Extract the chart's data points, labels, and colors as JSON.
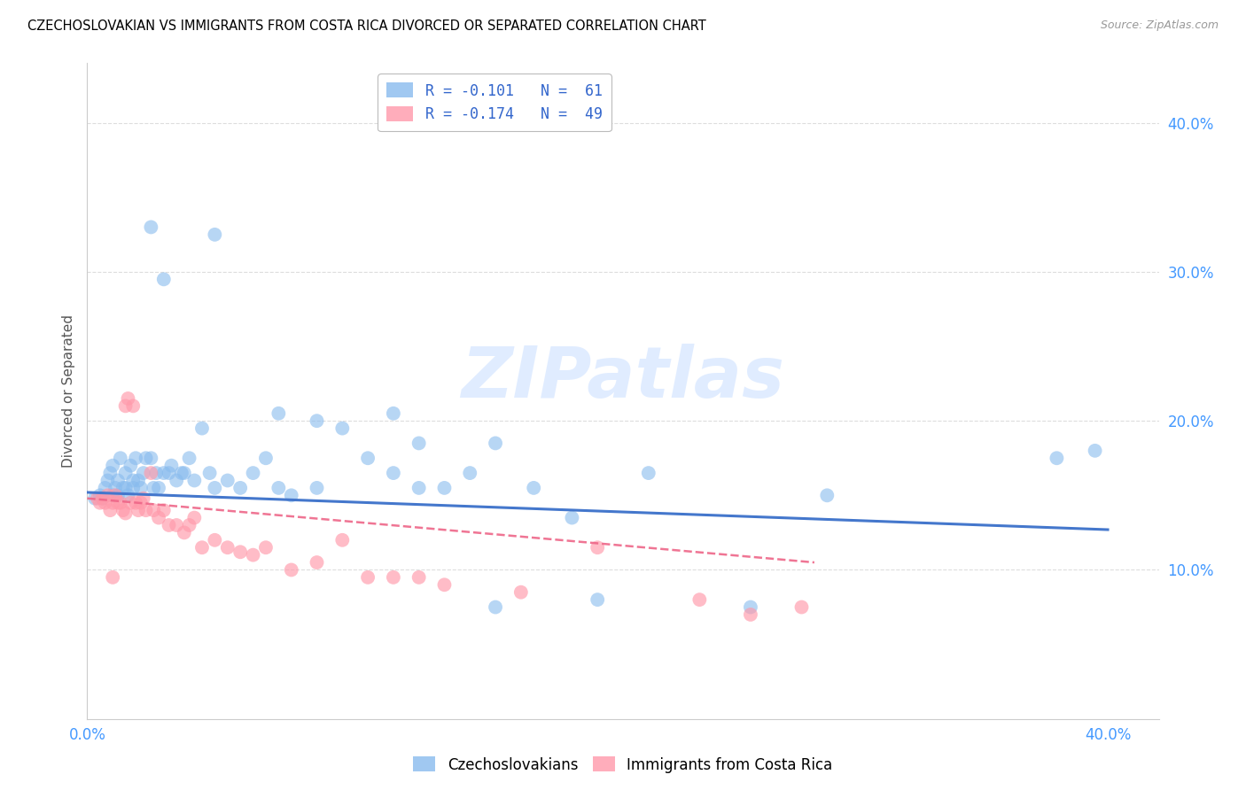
{
  "title": "CZECHOSLOVAKIAN VS IMMIGRANTS FROM COSTA RICA DIVORCED OR SEPARATED CORRELATION CHART",
  "source": "Source: ZipAtlas.com",
  "ylabel": "Divorced or Separated",
  "xlim": [
    0.0,
    0.42
  ],
  "ylim": [
    0.0,
    0.44
  ],
  "ytick_positions": [
    0.0,
    0.1,
    0.2,
    0.3,
    0.4
  ],
  "ytick_labels": [
    "",
    "10.0%",
    "20.0%",
    "30.0%",
    "40.0%"
  ],
  "xtick_positions": [
    0.0,
    0.1,
    0.2,
    0.3,
    0.4
  ],
  "xtick_labels": [
    "0.0%",
    "",
    "",
    "",
    "40.0%"
  ],
  "color_blue": "#88BBEE",
  "color_pink": "#FF99AA",
  "line_color_blue": "#4477CC",
  "line_color_pink": "#EE6688",
  "watermark": "ZIPatlas",
  "blue_line_x": [
    0.0,
    0.4
  ],
  "blue_line_y": [
    0.152,
    0.127
  ],
  "pink_line_x": [
    0.0,
    0.285
  ],
  "pink_line_y": [
    0.148,
    0.105
  ],
  "blue_scatter_x": [
    0.003,
    0.005,
    0.006,
    0.007,
    0.008,
    0.009,
    0.01,
    0.01,
    0.011,
    0.012,
    0.012,
    0.013,
    0.014,
    0.015,
    0.015,
    0.016,
    0.017,
    0.018,
    0.018,
    0.019,
    0.02,
    0.021,
    0.022,
    0.023,
    0.025,
    0.026,
    0.027,
    0.028,
    0.03,
    0.032,
    0.033,
    0.035,
    0.037,
    0.038,
    0.04,
    0.042,
    0.045,
    0.048,
    0.05,
    0.055,
    0.06,
    0.065,
    0.07,
    0.075,
    0.08,
    0.09,
    0.1,
    0.11,
    0.12,
    0.13,
    0.14,
    0.15,
    0.16,
    0.175,
    0.19,
    0.2,
    0.22,
    0.26,
    0.29,
    0.38,
    0.395
  ],
  "blue_scatter_y": [
    0.148,
    0.15,
    0.148,
    0.155,
    0.16,
    0.165,
    0.15,
    0.17,
    0.155,
    0.15,
    0.16,
    0.175,
    0.155,
    0.155,
    0.165,
    0.15,
    0.17,
    0.155,
    0.16,
    0.175,
    0.16,
    0.155,
    0.165,
    0.175,
    0.175,
    0.155,
    0.165,
    0.155,
    0.165,
    0.165,
    0.17,
    0.16,
    0.165,
    0.165,
    0.175,
    0.16,
    0.195,
    0.165,
    0.155,
    0.16,
    0.155,
    0.165,
    0.175,
    0.155,
    0.15,
    0.155,
    0.195,
    0.175,
    0.165,
    0.155,
    0.155,
    0.165,
    0.075,
    0.155,
    0.135,
    0.08,
    0.165,
    0.075,
    0.15,
    0.175,
    0.18
  ],
  "blue_scatter_y_high": [
    [
      0.025,
      0.33
    ],
    [
      0.03,
      0.295
    ],
    [
      0.05,
      0.325
    ],
    [
      0.075,
      0.205
    ],
    [
      0.09,
      0.2
    ],
    [
      0.12,
      0.205
    ],
    [
      0.13,
      0.185
    ],
    [
      0.16,
      0.185
    ]
  ],
  "pink_scatter_x": [
    0.004,
    0.005,
    0.006,
    0.007,
    0.008,
    0.009,
    0.01,
    0.011,
    0.012,
    0.013,
    0.014,
    0.015,
    0.015,
    0.016,
    0.017,
    0.018,
    0.019,
    0.02,
    0.021,
    0.022,
    0.023,
    0.025,
    0.026,
    0.028,
    0.03,
    0.032,
    0.035,
    0.038,
    0.04,
    0.042,
    0.045,
    0.05,
    0.055,
    0.06,
    0.065,
    0.07,
    0.08,
    0.09,
    0.1,
    0.11,
    0.12,
    0.13,
    0.14,
    0.17,
    0.2,
    0.24,
    0.26,
    0.28,
    0.01
  ],
  "pink_scatter_y": [
    0.148,
    0.145,
    0.148,
    0.145,
    0.15,
    0.14,
    0.145,
    0.15,
    0.145,
    0.145,
    0.14,
    0.138,
    0.21,
    0.215,
    0.145,
    0.21,
    0.145,
    0.14,
    0.145,
    0.148,
    0.14,
    0.165,
    0.14,
    0.135,
    0.14,
    0.13,
    0.13,
    0.125,
    0.13,
    0.135,
    0.115,
    0.12,
    0.115,
    0.112,
    0.11,
    0.115,
    0.1,
    0.105,
    0.12,
    0.095,
    0.095,
    0.095,
    0.09,
    0.085,
    0.115,
    0.08,
    0.07,
    0.075,
    0.095
  ]
}
